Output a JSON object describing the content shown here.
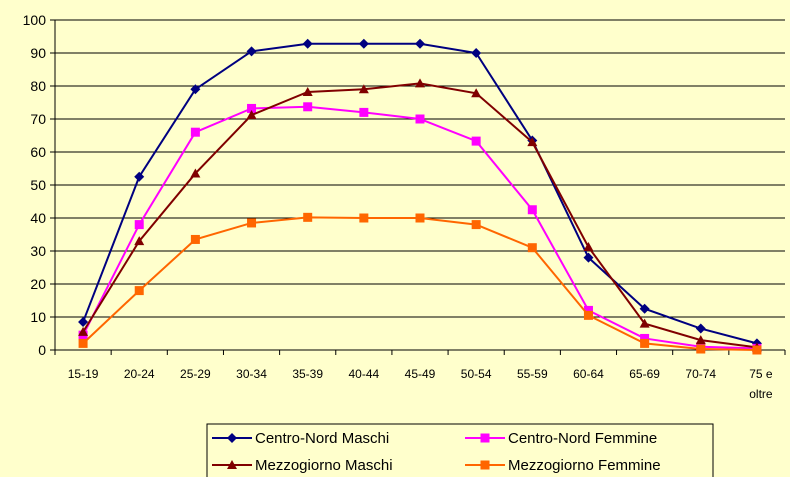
{
  "chart_data": {
    "type": "line",
    "categories": [
      "15-19",
      "20-24",
      "25-29",
      "30-34",
      "35-39",
      "40-44",
      "45-49",
      "50-54",
      "55-59",
      "60-64",
      "65-69",
      "70-74",
      "75 e oltre"
    ],
    "ylim": [
      0,
      100
    ],
    "yticks": [
      0,
      10,
      20,
      30,
      40,
      50,
      60,
      70,
      80,
      90,
      100
    ],
    "grid": true,
    "legend_position": "bottom",
    "series": [
      {
        "name": "Centro-Nord Maschi",
        "color": "#000080",
        "marker": "diamond",
        "values": [
          8.5,
          52.5,
          79,
          90.5,
          92.8,
          92.8,
          92.8,
          90,
          63.5,
          28,
          12.5,
          6.5,
          2
        ]
      },
      {
        "name": "Centro-Nord Femmine",
        "color": "#FF00FF",
        "marker": "square",
        "values": [
          4.5,
          38,
          66,
          73.2,
          73.7,
          72,
          70,
          63.3,
          42.5,
          12,
          3.5,
          1,
          0.5
        ]
      },
      {
        "name": "Mezzogiorno Maschi",
        "color": "#800000",
        "marker": "triangle",
        "values": [
          5.5,
          33,
          53.5,
          71.2,
          78.2,
          79,
          80.8,
          77.8,
          63,
          31.2,
          8,
          3,
          0.8
        ]
      },
      {
        "name": "Mezzogiorno Femmine",
        "color": "#FF6600",
        "marker": "square",
        "values": [
          2,
          18,
          33.5,
          38.5,
          40.2,
          40,
          40,
          38,
          31,
          10.5,
          2,
          0.3,
          0
        ]
      }
    ]
  }
}
